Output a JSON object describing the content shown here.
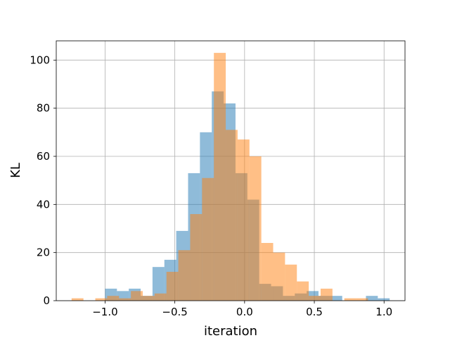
{
  "chart_data": {
    "type": "bar",
    "title": "",
    "xlabel": "iteration",
    "ylabel": "KL",
    "xlim": [
      -1.35,
      1.15
    ],
    "ylim": [
      0,
      108
    ],
    "xticks": [
      -1.0,
      -0.5,
      0.0,
      0.5,
      1.0
    ],
    "xtick_labels": [
      "−1.0",
      "−0.5",
      "0.0",
      "0.5",
      "1.0"
    ],
    "yticks": [
      0,
      20,
      40,
      60,
      80,
      100
    ],
    "ytick_labels": [
      "0",
      "20",
      "40",
      "60",
      "80",
      "100"
    ],
    "grid": true,
    "legend": "none",
    "series": [
      {
        "color": "#1f77b4",
        "opacity": 0.5,
        "bin_edges": [
          -1.0,
          -0.915,
          -0.83,
          -0.745,
          -0.66,
          -0.575,
          -0.49,
          -0.405,
          -0.32,
          -0.235,
          -0.15,
          -0.065,
          0.02,
          0.105,
          0.19,
          0.275,
          0.36,
          0.445,
          0.53,
          0.615,
          0.7,
          0.785,
          0.87,
          0.955,
          1.04
        ],
        "counts": [
          5,
          4,
          5,
          2,
          14,
          17,
          29,
          53,
          70,
          87,
          82,
          53,
          42,
          7,
          6,
          2,
          3,
          4,
          2,
          2,
          0,
          0,
          2,
          1
        ]
      },
      {
        "color": "#ff7f0e",
        "opacity": 0.5,
        "bin_edges": [
          -1.24,
          -1.155,
          -1.07,
          -0.985,
          -0.9,
          -0.815,
          -0.73,
          -0.645,
          -0.56,
          -0.475,
          -0.39,
          -0.305,
          -0.22,
          -0.135,
          -0.05,
          0.035,
          0.12,
          0.205,
          0.29,
          0.375,
          0.46,
          0.545,
          0.63,
          0.715,
          0.8,
          0.885
        ],
        "counts": [
          1,
          0,
          1,
          2,
          1,
          4,
          2,
          3,
          12,
          21,
          36,
          51,
          103,
          71,
          67,
          60,
          24,
          20,
          15,
          8,
          2,
          5,
          0,
          1,
          1
        ]
      }
    ]
  }
}
